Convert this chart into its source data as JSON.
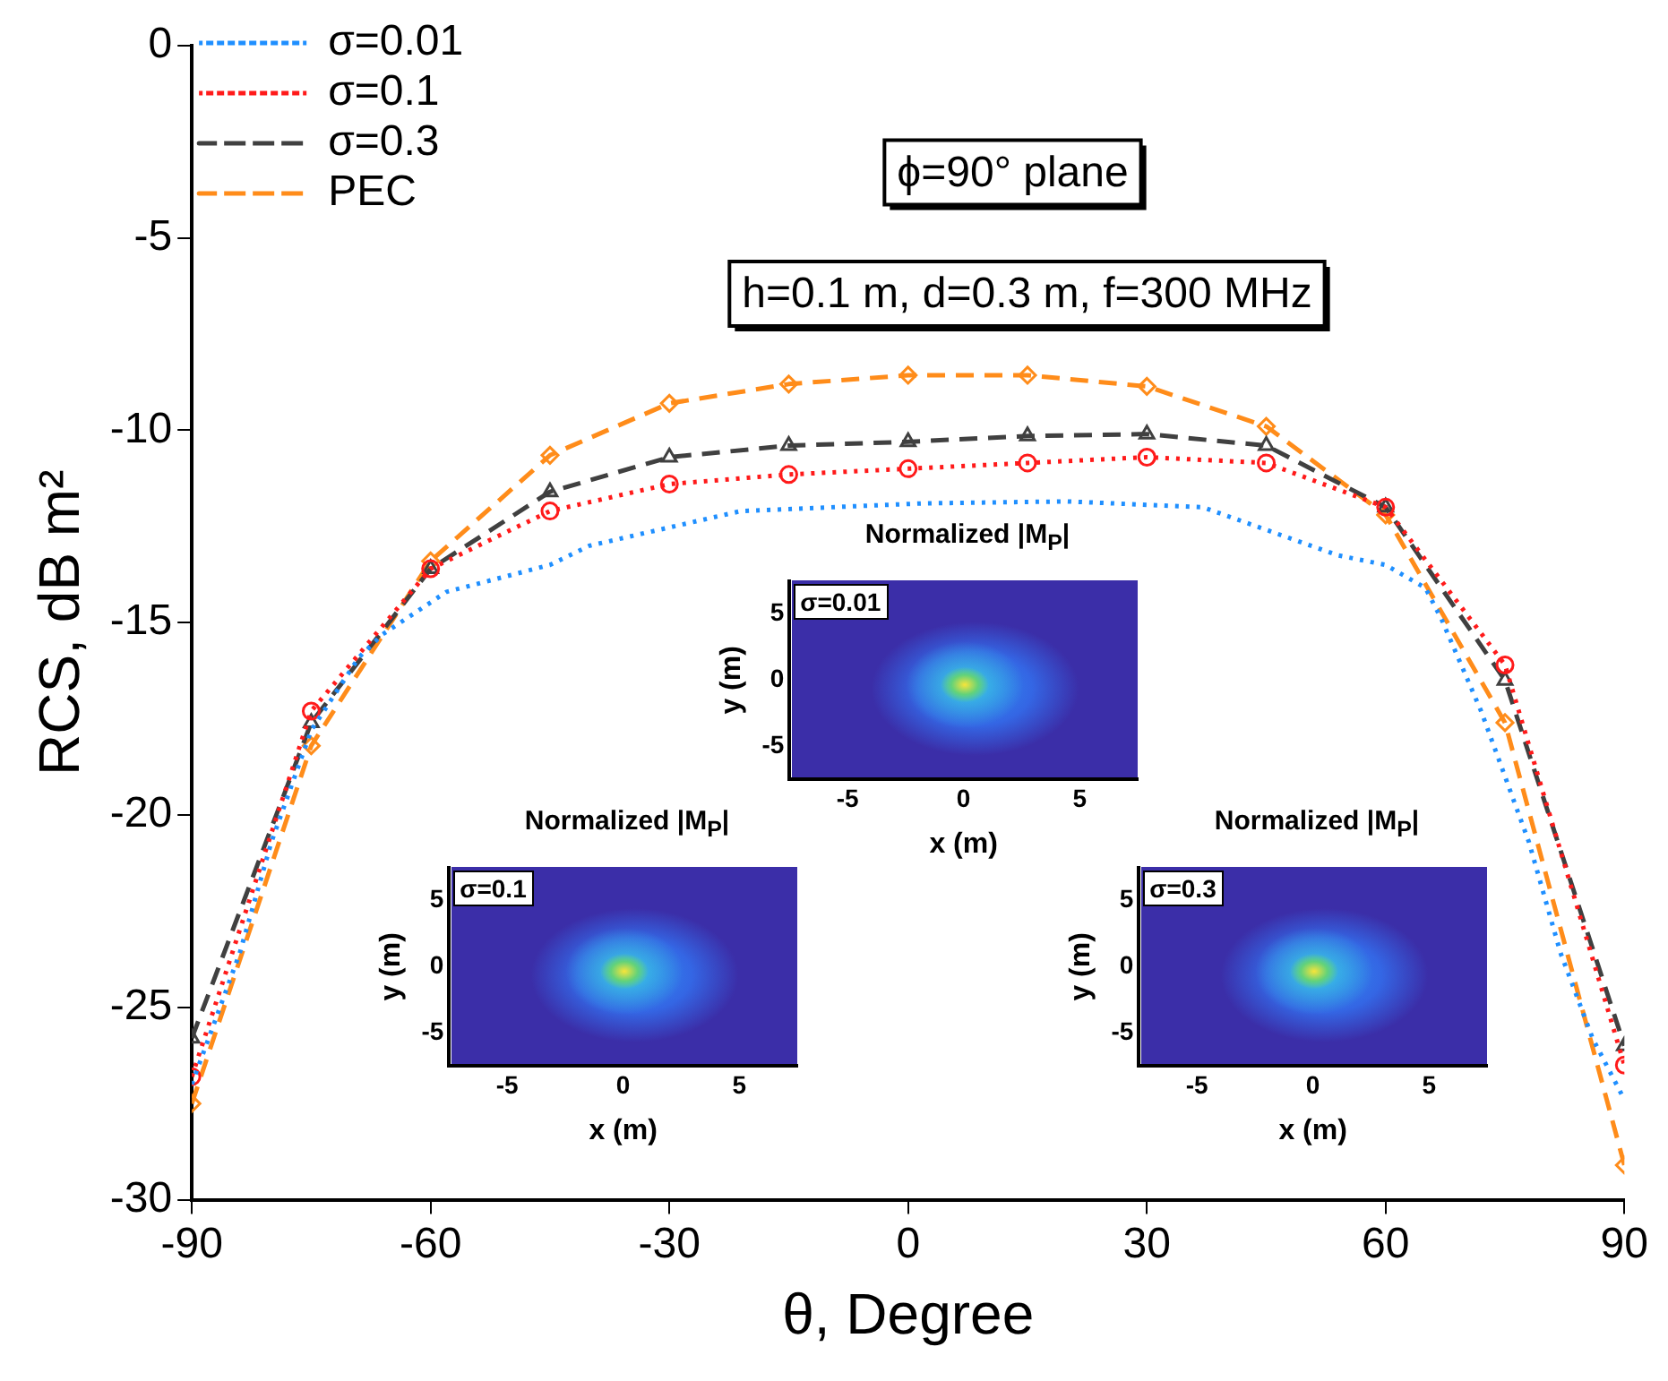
{
  "chart_data": [
    {
      "type": "line",
      "xlabel": "θ, Degree",
      "ylabel": "RCS, dB m²",
      "xlim": [
        -90,
        90
      ],
      "xticks": [
        -90,
        -60,
        -30,
        0,
        30,
        60,
        90
      ],
      "ylim": [
        -30,
        0
      ],
      "yticks": [
        -30,
        -25,
        -20,
        -15,
        -10,
        -5,
        0
      ],
      "legend": "top left",
      "annotations": [
        "ϕ=90° plane",
        "h=0.1 m, d=0.3 m, f=300 MHz"
      ],
      "x": [
        -90,
        -75,
        -60,
        -45,
        -30,
        -15,
        0,
        15,
        30,
        45,
        60,
        75,
        90
      ],
      "series": [
        {
          "name": "σ=0.01",
          "color": "#1f8fff",
          "line_style": "dotted",
          "marker": "none",
          "x": [
            -90,
            -84,
            -80,
            -75,
            -69,
            -66,
            -58,
            -45,
            -40,
            -21,
            2,
            20,
            37,
            54,
            60,
            65,
            67,
            72,
            78,
            82,
            86,
            90
          ],
          "values": [
            -27.0,
            -23.6,
            -20.7,
            -17.8,
            -15.9,
            -15.3,
            -14.2,
            -13.5,
            -13.0,
            -12.1,
            -11.9,
            -11.85,
            -12.0,
            -13.25,
            -13.5,
            -14.1,
            -14.9,
            -17.3,
            -20.7,
            -23.6,
            -25.8,
            -27.4
          ]
        },
        {
          "name": "σ=0.1",
          "color": "#ff1a1a",
          "line_style": "dotted",
          "marker": "circle",
          "values": [
            -26.8,
            -17.3,
            -13.6,
            -12.1,
            -11.4,
            -11.15,
            -11.0,
            -10.85,
            -10.7,
            -10.85,
            -12.0,
            -16.1,
            -26.5
          ]
        },
        {
          "name": "σ=0.3",
          "color": "#404040",
          "line_style": "dashed",
          "marker": "triangle",
          "values": [
            -25.8,
            -17.6,
            -13.6,
            -11.6,
            -10.7,
            -10.4,
            -10.3,
            -10.15,
            -10.1,
            -10.4,
            -12.0,
            -16.5,
            -26.0
          ]
        },
        {
          "name": "PEC",
          "color": "#ff8c1a",
          "line_style": "dashed",
          "marker": "diamond",
          "values": [
            -27.5,
            -18.2,
            -13.4,
            -10.65,
            -9.3,
            -8.8,
            -8.57,
            -8.57,
            -8.86,
            -9.9,
            -12.2,
            -17.6,
            -29.1
          ]
        }
      ]
    },
    {
      "type": "other",
      "title": "Normalized |M$_{P}$|",
      "xlabel": "x (m)",
      "ylabel": "y (m)",
      "categories": [
        "-5",
        "0",
        "5"
      ],
      "y_categories": [
        "5",
        "0",
        "-5"
      ],
      "annotations": [
        "σ=0.01"
      ]
    },
    {
      "type": "other",
      "title": "Normalized |M$_{P}$|",
      "xlabel": "x (m)",
      "ylabel": "y (m)",
      "categories": [
        "-5",
        "0",
        "5"
      ],
      "y_categories": [
        "5",
        "0",
        "-5"
      ],
      "annotations": [
        "σ=0.1"
      ]
    },
    {
      "type": "other",
      "title": "Normalized |M$_{P}$|",
      "xlabel": "x (m)",
      "ylabel": "y (m)",
      "categories": [
        "-5",
        "0",
        "5"
      ],
      "y_categories": [
        "5",
        "0",
        "-5"
      ],
      "annotations": [
        "σ=0.3"
      ]
    }
  ]
}
